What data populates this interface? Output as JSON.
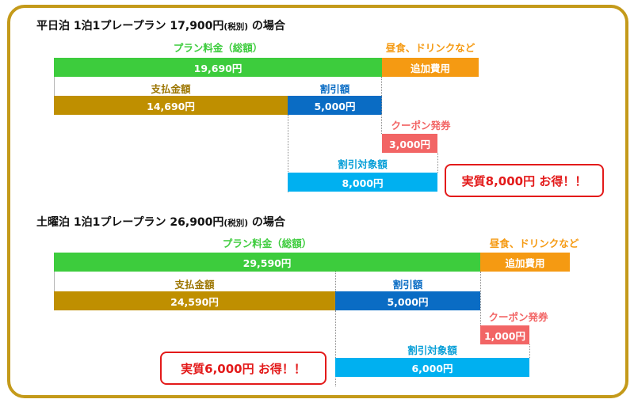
{
  "weekday": {
    "heading_prefix": "平日泊 1泊1プレープラン 17,900円",
    "heading_tax": "(税別)",
    "heading_suffix": " の場合",
    "total_label": "プラン料金（総額）",
    "total_value": "19,690円",
    "extra_label": "昼食、ドリンクなど",
    "extra_value": "追加費用",
    "paid_label": "支払金額",
    "paid_value": "14,690円",
    "discount_label": "割引額",
    "discount_value": "5,000円",
    "coupon_label": "クーポン発券",
    "coupon_value": "3,000円",
    "target_label": "割引対象額",
    "target_value": "8,000円",
    "callout": "実質8,000円 お得！！"
  },
  "weekend": {
    "heading_prefix": "土曜泊 1泊1プレープラン 26,900円",
    "heading_tax": "(税別)",
    "heading_suffix": " の場合",
    "total_label": "プラン料金（総額）",
    "total_value": "29,590円",
    "extra_label": "昼食、ドリンクなど",
    "extra_value": "追加費用",
    "paid_label": "支払金額",
    "paid_value": "24,590円",
    "discount_label": "割引額",
    "discount_value": "5,000円",
    "coupon_label": "クーポン発券",
    "coupon_value": "1,000円",
    "target_label": "割引対象額",
    "target_value": "6,000円",
    "callout": "実質6,000円 お得！！"
  },
  "colors": {
    "frame": "#c49a1a",
    "total": "#3dcc3d",
    "extra": "#f59a12",
    "paid": "#bf8f00",
    "discount": "#0a6cc4",
    "coupon": "#f26565",
    "target": "#00b0f0",
    "callout": "#e31a1a"
  }
}
